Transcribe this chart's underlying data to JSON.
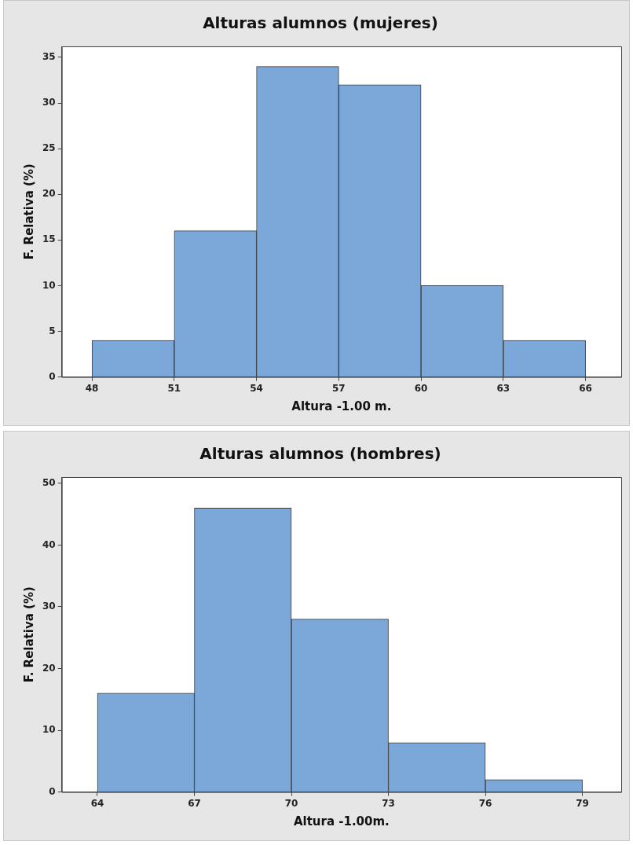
{
  "chart_data": [
    {
      "type": "histogram",
      "title": "Alturas alumnos (mujeres)",
      "xlabel": "Altura -1.00 m.",
      "ylabel": "F. Relativa (%)",
      "bins": [
        48,
        51,
        54,
        57,
        60,
        63,
        66
      ],
      "values": [
        4,
        16,
        34,
        32,
        10,
        4
      ],
      "color": "#7ba7d9",
      "xlim": [
        46.9,
        67.3
      ],
      "ylim": [
        0,
        36.2
      ],
      "xticks": [
        48,
        51,
        54,
        57,
        60,
        63,
        66
      ],
      "yticks": [
        0,
        5,
        10,
        15,
        20,
        25,
        30,
        35
      ]
    },
    {
      "type": "histogram",
      "title": "Alturas alumnos (hombres)",
      "xlabel": "Altura -1.00m.",
      "ylabel": "F. Relativa (%)",
      "bins": [
        64,
        67,
        70,
        73,
        76,
        79
      ],
      "values": [
        16,
        46,
        28,
        8,
        2
      ],
      "color": "#7ba7d9",
      "xlim": [
        62.9,
        80.2
      ],
      "ylim": [
        0,
        51
      ],
      "xticks": [
        64,
        67,
        70,
        73,
        76,
        79
      ],
      "yticks": [
        0,
        10,
        20,
        30,
        40,
        50
      ]
    }
  ]
}
